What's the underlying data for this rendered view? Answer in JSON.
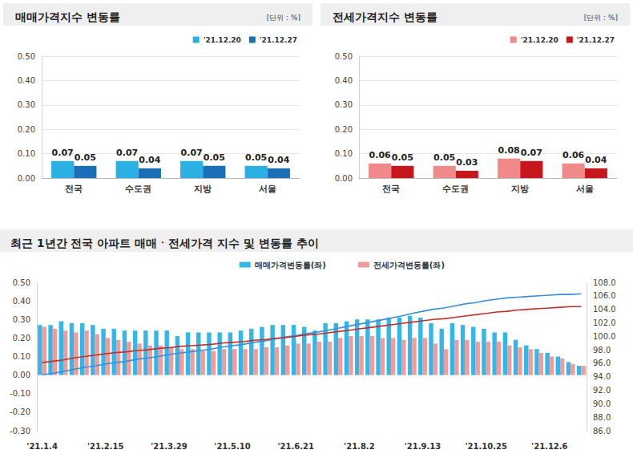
{
  "chart_data": [
    {
      "type": "bar",
      "title": "매매가격지수 변동률",
      "subtitle": "[단위 : %]",
      "categories": [
        "전국",
        "수도권",
        "지방",
        "서울"
      ],
      "series": [
        {
          "name": "'21.12.20",
          "color": "#2bb0e4",
          "values": [
            0.07,
            0.07,
            0.07,
            0.05
          ]
        },
        {
          "name": "'21.12.27",
          "color": "#1b6fb8",
          "values": [
            0.05,
            0.04,
            0.05,
            0.04
          ]
        }
      ],
      "ylim": [
        0,
        0.5
      ],
      "yticks": [
        {
          "value": 0,
          "label": "0.00"
        },
        {
          "value": 0.1,
          "label": "0.10"
        },
        {
          "value": 0.2,
          "label": "0.20"
        },
        {
          "value": 0.3,
          "label": "0.30"
        },
        {
          "value": 0.4,
          "label": "0.40"
        },
        {
          "value": 0.5,
          "label": "0.50"
        }
      ],
      "grid": true,
      "legend": "upper right",
      "data_labels": true
    },
    {
      "type": "bar",
      "title": "전세가격지수 변동률",
      "subtitle": "[단위 : %]",
      "categories": [
        "전국",
        "수도권",
        "지방",
        "서울"
      ],
      "series": [
        {
          "name": "'21.12.20",
          "color": "#f08a8a",
          "values": [
            0.06,
            0.05,
            0.08,
            0.06
          ]
        },
        {
          "name": "'21.12.27",
          "color": "#c8161d",
          "values": [
            0.05,
            0.03,
            0.07,
            0.04
          ]
        }
      ],
      "ylim": [
        0,
        0.5
      ],
      "yticks": [
        {
          "value": 0,
          "label": "0.00"
        },
        {
          "value": 0.1,
          "label": "0.10"
        },
        {
          "value": 0.2,
          "label": "0.20"
        },
        {
          "value": 0.3,
          "label": "0.30"
        },
        {
          "value": 0.4,
          "label": "0.40"
        },
        {
          "value": 0.5,
          "label": "0.50"
        }
      ],
      "grid": true,
      "legend": "upper right",
      "data_labels": true
    },
    {
      "type": "bar",
      "title": "최근 1년간 전국 아파트 매매ㆍ전세가격 지수 및 변동률 추이",
      "categories": [
        "'21.1.4",
        null,
        null,
        null,
        null,
        null,
        "'21.2.15",
        null,
        null,
        null,
        null,
        null,
        "'21.3.29",
        null,
        null,
        null,
        null,
        null,
        "'21.5.10",
        null,
        null,
        null,
        null,
        null,
        "'21.6.21",
        null,
        null,
        null,
        null,
        null,
        "'21.8.2",
        null,
        null,
        null,
        null,
        null,
        "'21.9.13",
        null,
        null,
        null,
        null,
        null,
        "'21.10.25",
        null,
        null,
        null,
        null,
        null,
        "'21.12.6",
        null,
        null,
        null
      ],
      "series": [
        {
          "name": "매매가격변동률(좌)",
          "type": "bar",
          "color": "#33b6e8",
          "values": [
            0.27,
            0.27,
            0.29,
            0.28,
            0.28,
            0.27,
            0.25,
            0.25,
            0.24,
            0.24,
            0.24,
            0.24,
            0.24,
            0.21,
            0.23,
            0.23,
            0.23,
            0.23,
            0.23,
            0.24,
            0.25,
            0.26,
            0.27,
            0.27,
            0.27,
            0.26,
            0.24,
            0.28,
            0.28,
            0.29,
            0.3,
            0.3,
            0.3,
            0.31,
            0.31,
            0.32,
            0.31,
            0.28,
            0.25,
            0.28,
            0.27,
            0.26,
            0.25,
            0.23,
            0.23,
            0.19,
            0.16,
            0.14,
            0.12,
            0.1,
            0.07,
            0.05
          ]
        },
        {
          "name": "전세가격변동률(좌)",
          "type": "bar",
          "color": "#f29b9b",
          "values": [
            0.26,
            0.25,
            0.24,
            0.23,
            0.24,
            0.22,
            0.2,
            0.19,
            0.18,
            0.17,
            0.16,
            0.16,
            0.15,
            0.14,
            0.14,
            0.13,
            0.13,
            0.14,
            0.14,
            0.14,
            0.14,
            0.15,
            0.15,
            0.16,
            0.17,
            0.17,
            0.18,
            0.18,
            0.2,
            0.21,
            0.21,
            0.21,
            0.2,
            0.2,
            0.19,
            0.2,
            0.2,
            0.17,
            0.14,
            0.19,
            0.19,
            0.18,
            0.18,
            0.18,
            0.16,
            0.15,
            0.14,
            0.12,
            0.1,
            0.09,
            0.06,
            0.05
          ]
        },
        {
          "type": "line",
          "axis": "y2",
          "color": "#3b8fd8",
          "values": [
            94.3,
            94.5,
            94.8,
            95.1,
            95.4,
            95.6,
            95.9,
            96.1,
            96.3,
            96.6,
            96.8,
            97.0,
            97.3,
            97.5,
            97.7,
            97.9,
            98.1,
            98.4,
            98.6,
            98.8,
            99.1,
            99.3,
            99.6,
            99.9,
            100.1,
            100.4,
            100.6,
            100.9,
            101.2,
            101.5,
            101.8,
            102.1,
            102.4,
            102.7,
            103.0,
            103.4,
            103.7,
            104.0,
            104.2,
            104.5,
            104.8,
            105.0,
            105.3,
            105.5,
            105.7,
            105.8,
            105.9,
            106.0,
            106.1,
            106.2,
            106.2,
            106.3
          ]
        },
        {
          "type": "line",
          "axis": "y2",
          "color": "#c0302a",
          "values": [
            96.1,
            96.3,
            96.5,
            96.8,
            97.0,
            97.2,
            97.4,
            97.6,
            97.7,
            97.9,
            98.0,
            98.2,
            98.3,
            98.5,
            98.6,
            98.7,
            98.8,
            99.0,
            99.1,
            99.2,
            99.4,
            99.5,
            99.7,
            99.8,
            100.0,
            100.2,
            100.3,
            100.5,
            100.7,
            100.9,
            101.1,
            101.3,
            101.5,
            101.7,
            101.9,
            102.1,
            102.3,
            102.5,
            102.6,
            102.8,
            103.0,
            103.2,
            103.4,
            103.6,
            103.7,
            103.9,
            104.0,
            104.1,
            104.2,
            104.3,
            104.4,
            104.4
          ]
        }
      ],
      "ylim": [
        -0.3,
        0.5
      ],
      "yticks": [
        {
          "value": -0.3,
          "label": "-0.30"
        },
        {
          "value": -0.2,
          "label": "-0.20"
        },
        {
          "value": -0.1,
          "label": "-0.10"
        },
        {
          "value": 0,
          "label": "0.00"
        },
        {
          "value": 0.1,
          "label": "0.10"
        },
        {
          "value": 0.2,
          "label": "0.20"
        },
        {
          "value": 0.3,
          "label": "0.30"
        },
        {
          "value": 0.4,
          "label": "0.40"
        },
        {
          "value": 0.5,
          "label": "0.50"
        }
      ],
      "y2lim": [
        86,
        108
      ],
      "y2ticks": [
        {
          "value": 86,
          "label": "86.0"
        },
        {
          "value": 88,
          "label": "88.0"
        },
        {
          "value": 90,
          "label": "90.0"
        },
        {
          "value": 92,
          "label": "92.0"
        },
        {
          "value": 94,
          "label": "94.0"
        },
        {
          "value": 96,
          "label": "96.0"
        },
        {
          "value": 98,
          "label": "98.0"
        },
        {
          "value": 100,
          "label": "100.0"
        },
        {
          "value": 102,
          "label": "102.0"
        },
        {
          "value": 104,
          "label": "104.0"
        },
        {
          "value": 106,
          "label": "106.0"
        },
        {
          "value": 108,
          "label": "108.0"
        }
      ],
      "grid": false,
      "legend": "top",
      "data_labels": false
    }
  ]
}
